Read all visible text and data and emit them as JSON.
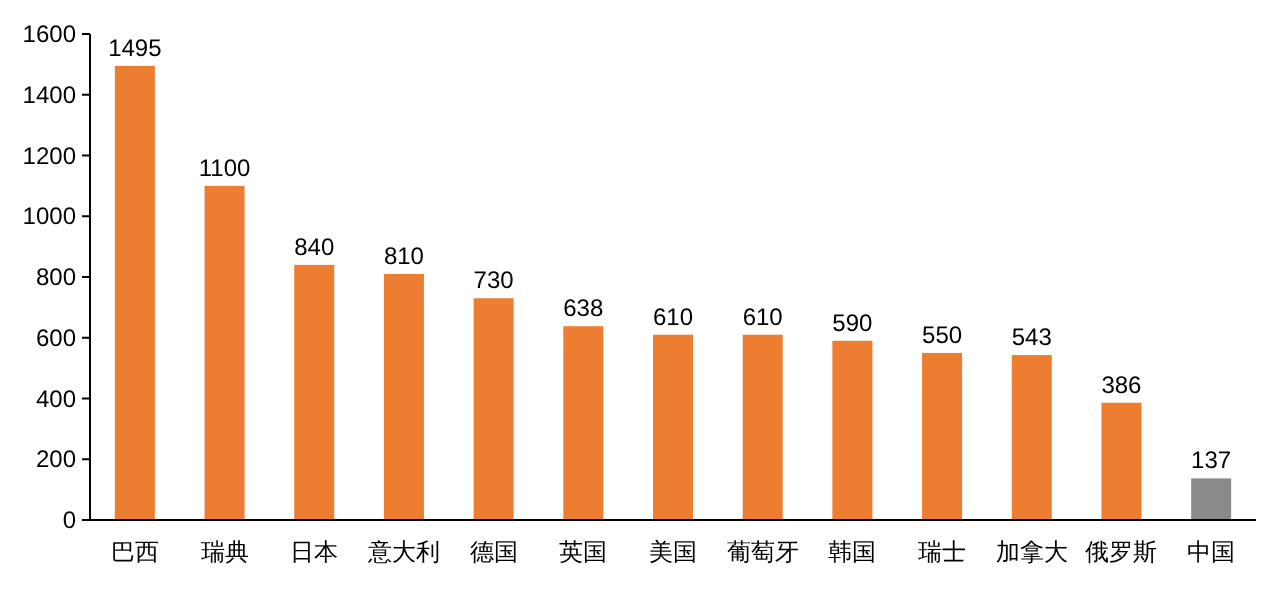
{
  "chart_data": {
    "type": "bar",
    "categories": [
      "巴西",
      "瑞典",
      "日本",
      "意大利",
      "德国",
      "英国",
      "美国",
      "葡萄牙",
      "韩国",
      "瑞士",
      "加拿大",
      "俄罗斯",
      "中国"
    ],
    "values": [
      1495,
      1100,
      840,
      810,
      730,
      638,
      610,
      610,
      590,
      550,
      543,
      386,
      137
    ],
    "colors": [
      "#ed7d31",
      "#ed7d31",
      "#ed7d31",
      "#ed7d31",
      "#ed7d31",
      "#ed7d31",
      "#ed7d31",
      "#ed7d31",
      "#ed7d31",
      "#ed7d31",
      "#ed7d31",
      "#ed7d31",
      "#8a8a8a"
    ],
    "ylim": [
      0,
      1600
    ],
    "yticks": [
      0,
      200,
      400,
      600,
      800,
      1000,
      1200,
      1400,
      1600
    ],
    "data_labels": true,
    "grid": false
  }
}
